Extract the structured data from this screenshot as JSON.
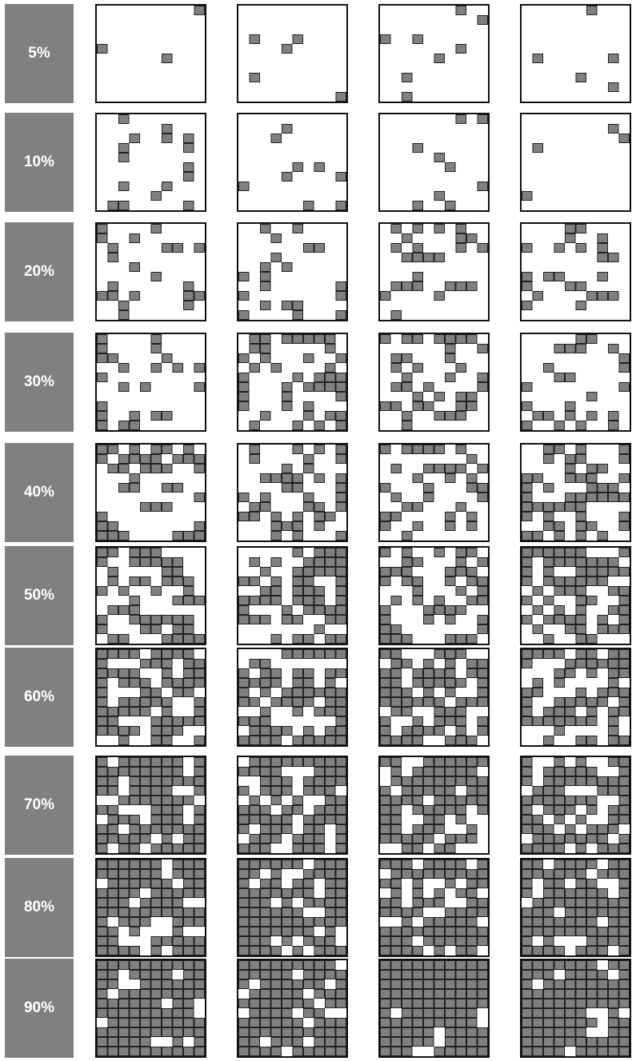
{
  "rows": [
    {
      "label": "5%",
      "fill_fraction": 0.05
    },
    {
      "label": "10%",
      "fill_fraction": 0.1
    },
    {
      "label": "20%",
      "fill_fraction": 0.2
    },
    {
      "label": "30%",
      "fill_fraction": 0.3
    },
    {
      "label": "40%",
      "fill_fraction": 0.4
    },
    {
      "label": "50%",
      "fill_fraction": 0.5
    },
    {
      "label": "60%",
      "fill_fraction": 0.6
    },
    {
      "label": "70%",
      "fill_fraction": 0.7
    },
    {
      "label": "80%",
      "fill_fraction": 0.8
    },
    {
      "label": "90%",
      "fill_fraction": 0.9
    }
  ],
  "samples_per_row": 4,
  "grid_cells": {
    "cols": 10,
    "rows": 10
  },
  "colors": {
    "label_bg": "#808080",
    "label_text": "#ffffff",
    "cell_fill": "#808080",
    "cell_stroke": "#222222",
    "panel_border": "#111111",
    "background": "#ffffff"
  }
}
